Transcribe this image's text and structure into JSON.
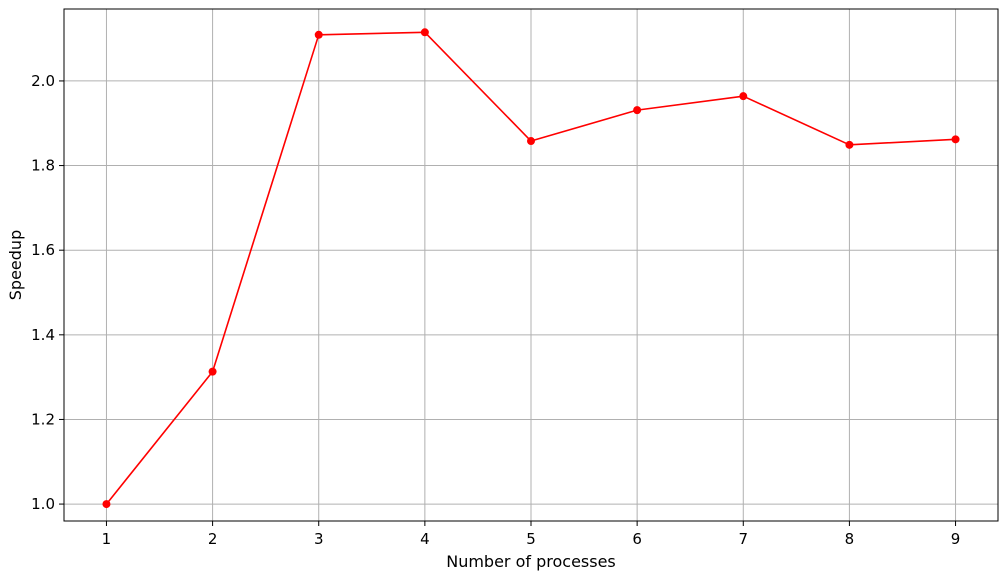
{
  "chart_data": {
    "type": "line",
    "title": "",
    "xlabel": "Number of processes",
    "ylabel": "Speedup",
    "xlim": [
      0.6,
      9.4
    ],
    "ylim": [
      0.96,
      2.17
    ],
    "xticks": [
      1,
      2,
      3,
      4,
      5,
      6,
      7,
      8,
      9
    ],
    "yticks": [
      1.0,
      1.2,
      1.4,
      1.6,
      1.8,
      2.0
    ],
    "ytick_labels": [
      "1.0",
      "1.2",
      "1.4",
      "1.6",
      "1.8",
      "2.0"
    ],
    "grid": true,
    "legend": null,
    "series": [
      {
        "x": [
          1,
          2,
          3,
          4,
          5,
          6,
          7,
          8,
          9
        ],
        "y": [
          1.0,
          1.313,
          2.109,
          2.115,
          1.858,
          1.931,
          1.964,
          1.849,
          1.862
        ],
        "color": "#ff0000",
        "marker": "circle"
      }
    ]
  },
  "colors": {
    "background": "#ffffff",
    "grid": "#b0b0b0",
    "axes": "#000000",
    "line": "#ff0000"
  }
}
